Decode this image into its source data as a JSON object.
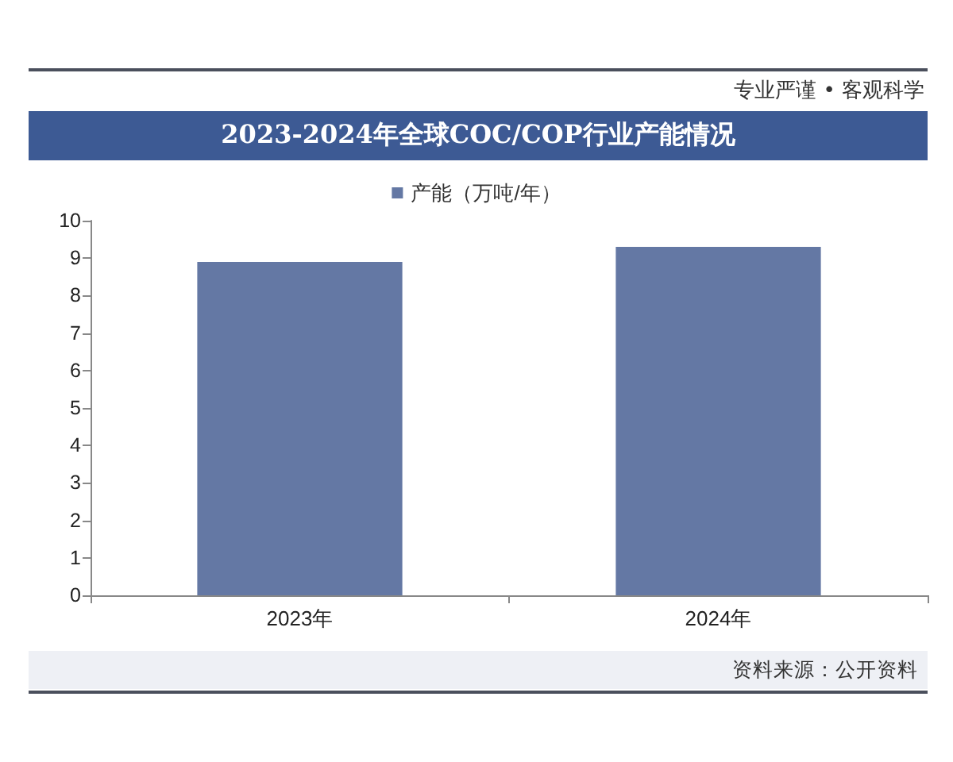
{
  "chart_data": {
    "type": "bar",
    "title": "2023-2024年全球COC/COP行业产能情况",
    "categories": [
      "2023年",
      "2024年"
    ],
    "series": [
      {
        "name": "产能（万吨/年）",
        "color": "#6478a4",
        "values": [
          8.9,
          9.3
        ]
      }
    ],
    "ylim": [
      0,
      10
    ],
    "yticks": [
      0,
      1,
      2,
      3,
      4,
      5,
      6,
      7,
      8,
      9,
      10
    ],
    "grid": false,
    "legend": "top",
    "annotations": [
      "专业严谨 • 客观科学",
      "资料来源：公开资料"
    ]
  }
}
